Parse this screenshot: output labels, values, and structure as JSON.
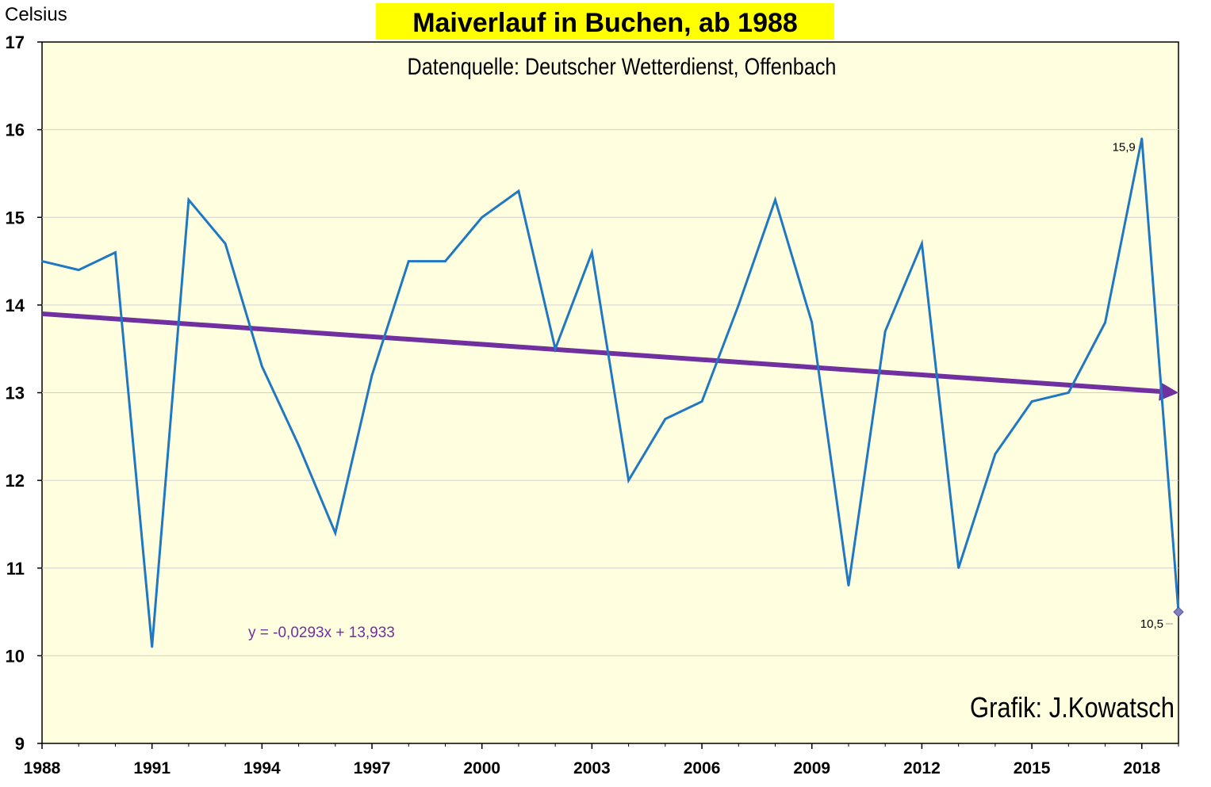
{
  "chart_data": {
    "type": "line",
    "title": "Maiverlauf in Buchen, ab 1988",
    "subtitle": "Datenquelle: Deutscher Wetterdienst, Offenbach",
    "ylabel": "Celsius",
    "xlabel": "",
    "credit": "Grafik: J.Kowatsch",
    "trend_equation": "y = -0,0293x + 13,933",
    "ylim": [
      9,
      17
    ],
    "xlim": [
      1988,
      2019
    ],
    "y_ticks": [
      "9",
      "10",
      "11",
      "12",
      "13",
      "14",
      "15",
      "16",
      "17"
    ],
    "x_ticks": [
      "1988",
      "1991",
      "1994",
      "1997",
      "2000",
      "2003",
      "2006",
      "2009",
      "2012",
      "2015",
      "2018"
    ],
    "grid": "horizontal",
    "x": [
      1988,
      1989,
      1990,
      1991,
      1992,
      1993,
      1994,
      1995,
      1996,
      1997,
      1998,
      1999,
      2000,
      2001,
      2002,
      2003,
      2004,
      2005,
      2006,
      2007,
      2008,
      2009,
      2010,
      2011,
      2012,
      2013,
      2014,
      2015,
      2016,
      2017,
      2018,
      2019
    ],
    "series": [
      {
        "values": [
          14.5,
          14.4,
          14.6,
          10.1,
          15.2,
          14.7,
          13.3,
          12.4,
          11.4,
          13.2,
          14.5,
          14.5,
          15.0,
          15.3,
          13.5,
          14.6,
          12.0,
          12.7,
          12.9,
          14.0,
          15.2,
          13.8,
          10.8,
          13.7,
          14.7,
          11.0,
          12.3,
          12.9,
          13.0,
          13.8,
          15.9,
          10.5
        ],
        "color": "#1f78c1"
      }
    ],
    "trend": {
      "start": [
        1988,
        13.9
      ],
      "end": [
        2019,
        13.0
      ],
      "color": "#7030a0"
    },
    "data_labels": [
      {
        "x": 2018,
        "y": 15.9,
        "text": "15,9"
      },
      {
        "x": 2019,
        "y": 10.5,
        "text": "10,5"
      }
    ],
    "colors": {
      "plot_background": "#ffffe0",
      "title_background": "#ffff00",
      "line": "#1f78c1",
      "trend": "#7030a0"
    }
  }
}
